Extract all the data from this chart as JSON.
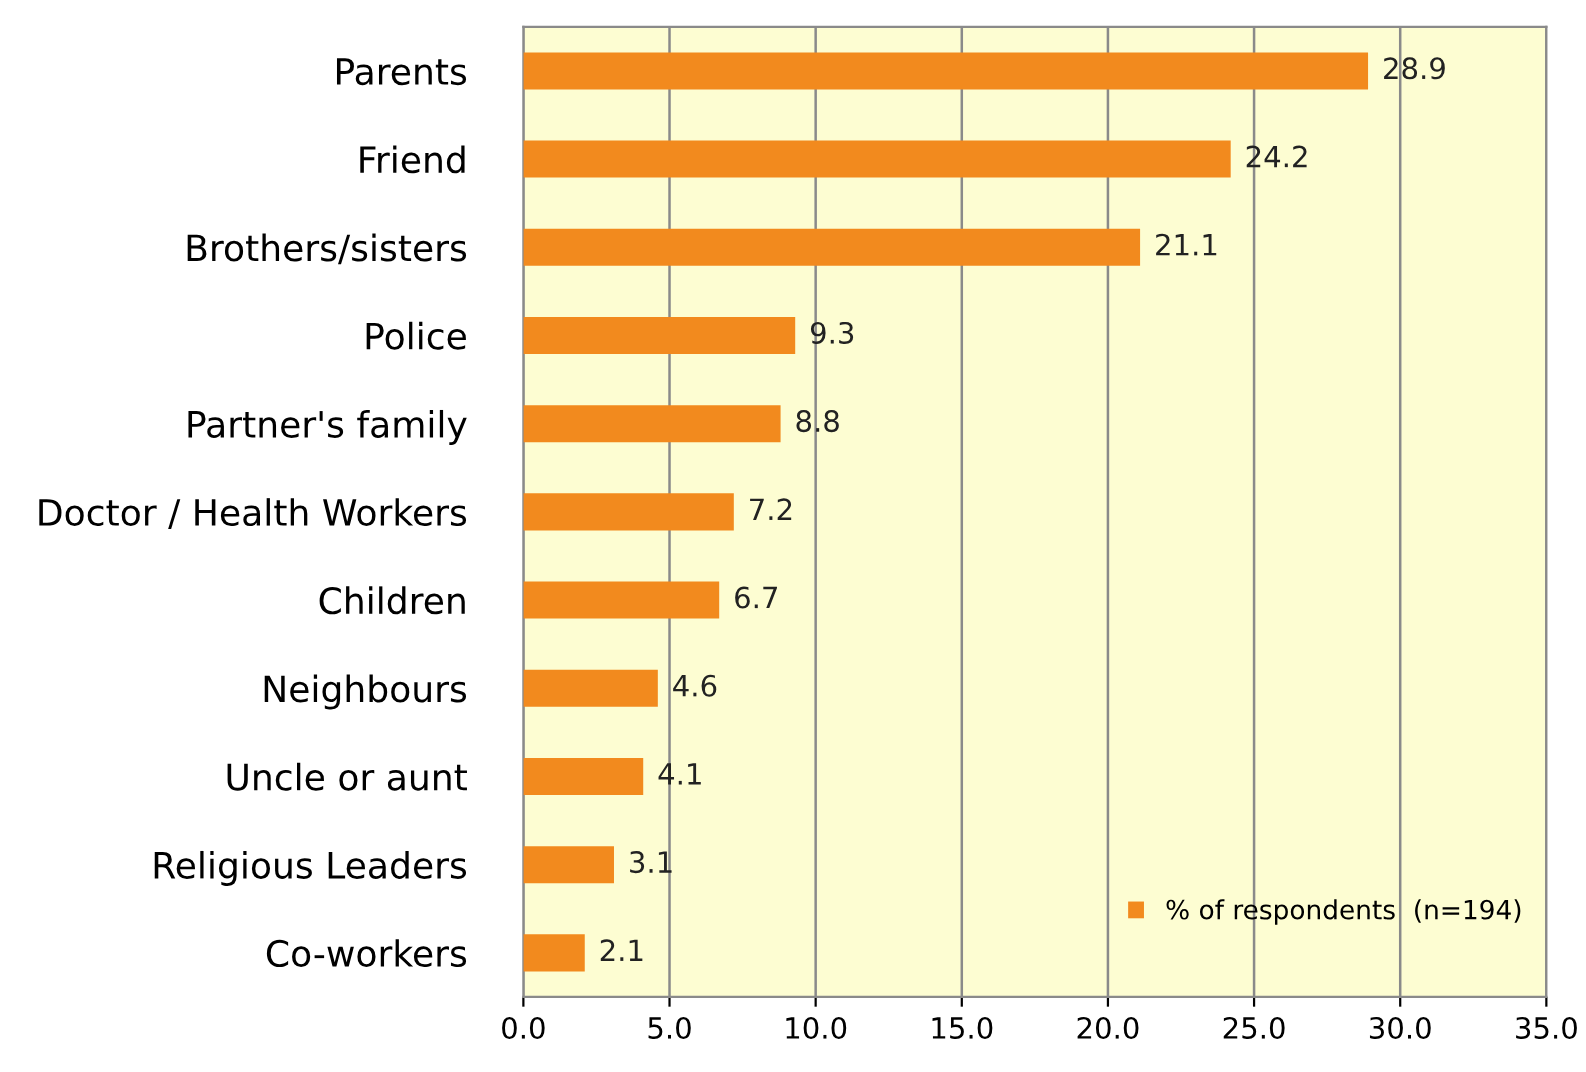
{
  "chart_data": {
    "type": "bar",
    "orientation": "horizontal",
    "categories": [
      "Parents",
      "Friend",
      "Brothers/sisters",
      "Police",
      "Partner's family",
      "Doctor / Health Workers",
      "Children",
      "Neighbours",
      "Uncle or aunt",
      "Religious Leaders",
      "Co-workers"
    ],
    "series": [
      {
        "name": "% of respondents  (n=194)",
        "color": "#f28a1e",
        "values": [
          28.9,
          24.2,
          21.1,
          9.3,
          8.8,
          7.2,
          6.7,
          4.6,
          4.1,
          3.1,
          2.1
        ]
      }
    ],
    "xlim": [
      0,
      35
    ],
    "xticks": [
      {
        "value": 0,
        "label": "0.0"
      },
      {
        "value": 5,
        "label": "5.0"
      },
      {
        "value": 10,
        "label": "10.0"
      },
      {
        "value": 15,
        "label": "15.0"
      },
      {
        "value": 20,
        "label": "20.0"
      },
      {
        "value": 25,
        "label": "25.0"
      },
      {
        "value": 30,
        "label": "30.0"
      },
      {
        "value": 35,
        "label": "35.0"
      }
    ],
    "grid": "x",
    "legend": "bottom right",
    "data_labels": true
  }
}
